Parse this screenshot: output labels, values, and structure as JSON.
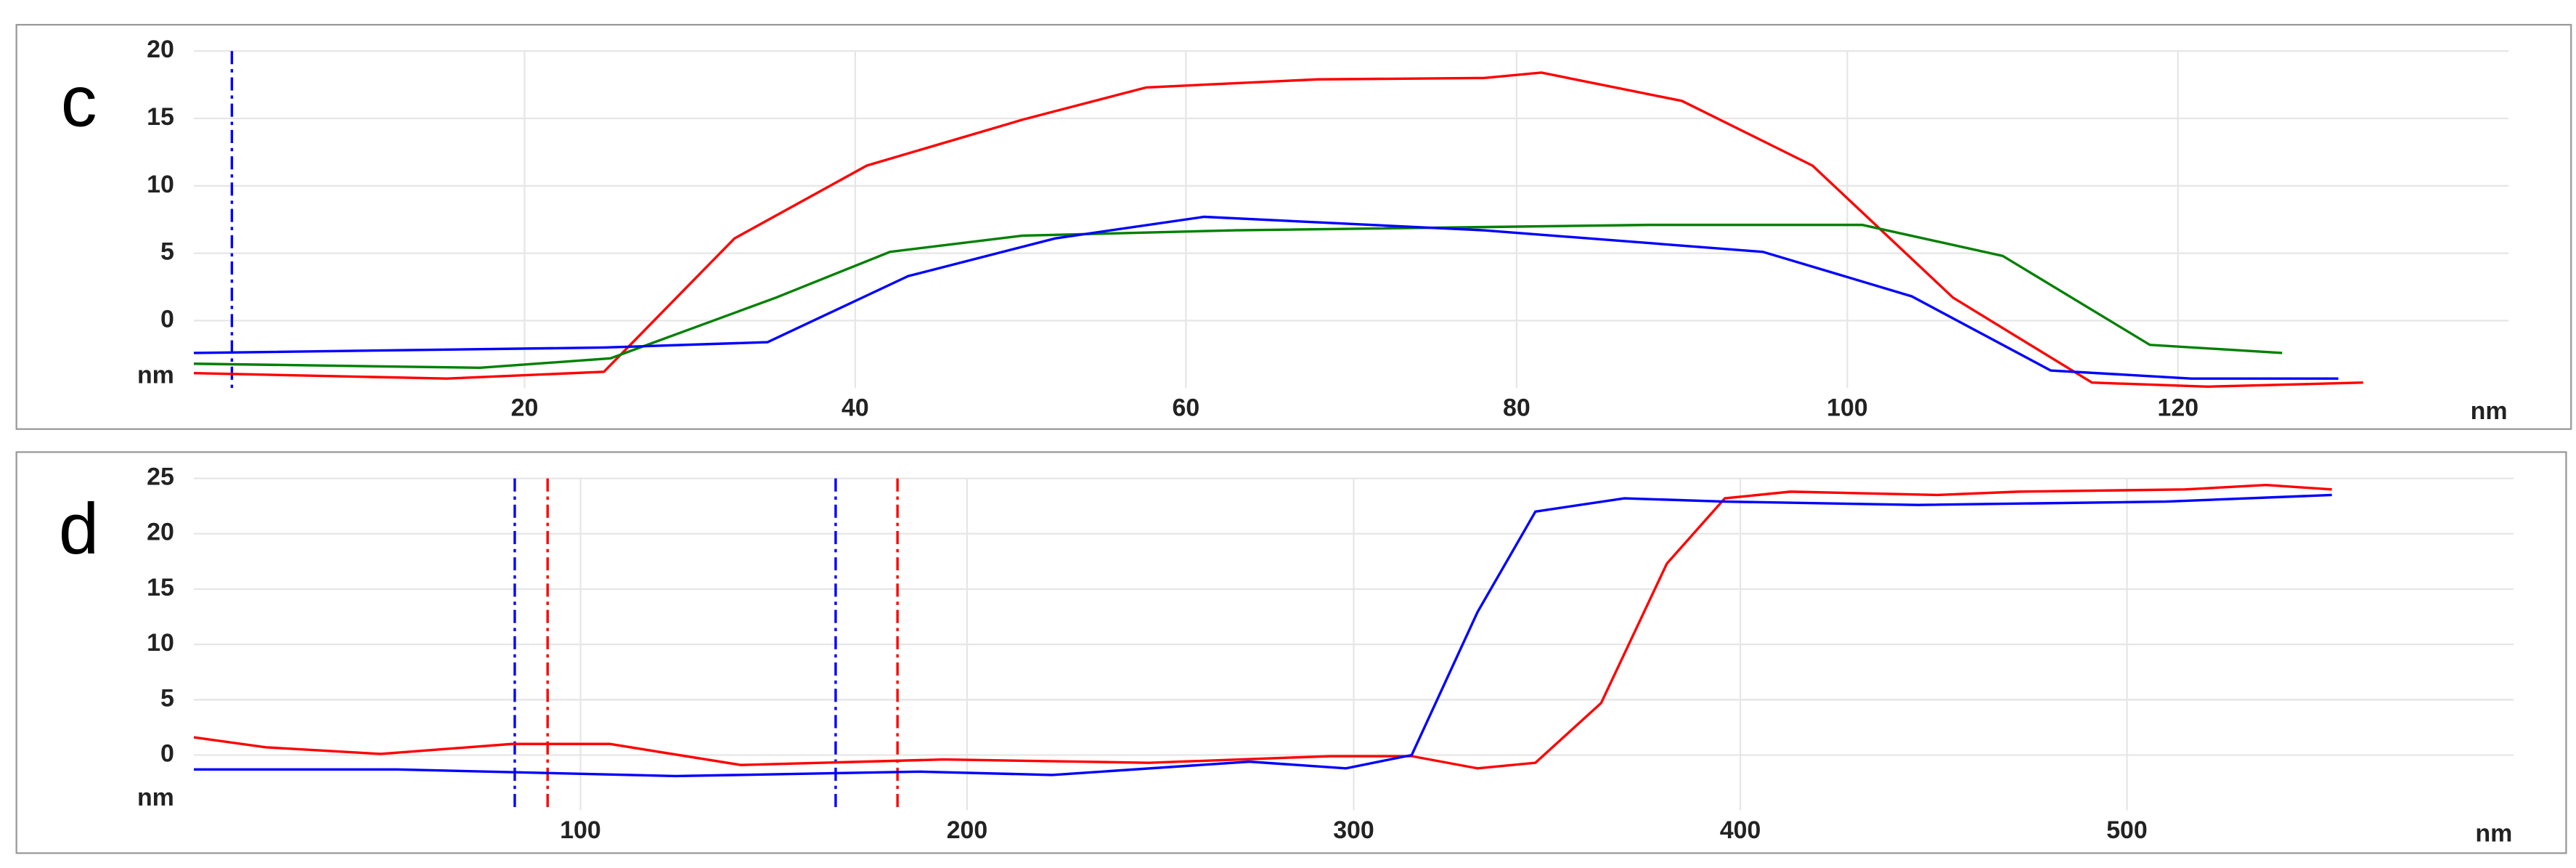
{
  "chart_data": [
    {
      "type": "line",
      "panel_label": "c",
      "x_label": "nm",
      "y_label": "nm",
      "xlim": [
        0,
        140
      ],
      "ylim": [
        -5,
        20
      ],
      "xticks": [
        20,
        40,
        60,
        80,
        100,
        120
      ],
      "yticks": [
        0,
        5,
        10,
        15,
        20
      ],
      "grid": true,
      "vertical_lines": [
        {
          "x": 2.3,
          "color": "#0000ff"
        }
      ],
      "series": [
        {
          "color": "#ff0000",
          "x": [
            0,
            15.3,
            24.8,
            32.7,
            40.7,
            50.1,
            57.6,
            68,
            78,
            81.5,
            90,
            97.9,
            106.4,
            114.8,
            121.8,
            131.2
          ],
          "values": [
            -3.9,
            -4.3,
            -3.8,
            6.1,
            11.5,
            14.9,
            17.3,
            17.9,
            18,
            18.4,
            16.3,
            11.5,
            1.7,
            -4.6,
            -4.9,
            -4.6
          ]
        },
        {
          "color": "#008000",
          "x": [
            0,
            17.3,
            25.2,
            35.2,
            42.1,
            50.1,
            63,
            88,
            100.9,
            109.4,
            118.3,
            126.3
          ],
          "values": [
            -3.2,
            -3.5,
            -2.8,
            1.7,
            5.1,
            6.3,
            6.7,
            7.1,
            7.1,
            4.8,
            -1.8,
            -2.4
          ]
        },
        {
          "color": "#0000ff",
          "x": [
            0,
            24.8,
            34.7,
            43.2,
            52.1,
            61.1,
            78,
            94.9,
            103.9,
            112.3,
            120.8,
            129.7
          ],
          "values": [
            -2.4,
            -2,
            -1.6,
            3.3,
            6.1,
            7.7,
            6.7,
            5.1,
            1.8,
            -3.7,
            -4.3,
            -4.3
          ]
        }
      ]
    },
    {
      "type": "line",
      "panel_label": "d",
      "x_label": "nm",
      "y_label": "nm",
      "xlim": [
        0,
        600
      ],
      "ylim": [
        -5,
        25
      ],
      "xticks": [
        100,
        200,
        300,
        400,
        500
      ],
      "yticks": [
        0,
        5,
        10,
        15,
        20,
        25
      ],
      "grid": true,
      "vertical_lines": [
        {
          "x": 83,
          "color": "#0000ff"
        },
        {
          "x": 91.5,
          "color": "#ff0000"
        },
        {
          "x": 166,
          "color": "#0000ff"
        },
        {
          "x": 182,
          "color": "#ff0000"
        }
      ],
      "series": [
        {
          "color": "#ff0000",
          "x": [
            0,
            18.6,
            48.3,
            82.2,
            107.6,
            141.5,
            194,
            247,
            294,
            315,
            332,
            347,
            364,
            381,
            396,
            413,
            451,
            472,
            515,
            536,
            553
          ],
          "values": [
            1.6,
            0.7,
            0.1,
            1,
            1,
            -0.9,
            -0.4,
            -0.7,
            -0.1,
            -0.1,
            -1.2,
            -0.7,
            4.7,
            17.3,
            23.2,
            23.8,
            23.5,
            23.8,
            24,
            24.4,
            24
          ]
        },
        {
          "color": "#0000ff",
          "x": [
            0,
            52.5,
            124.6,
            188,
            222,
            273,
            298,
            315,
            332,
            347,
            370,
            396,
            446,
            510,
            553
          ],
          "values": [
            -1.3,
            -1.3,
            -1.9,
            -1.5,
            -1.8,
            -0.6,
            -1.2,
            0,
            12.9,
            22,
            23.2,
            22.9,
            22.6,
            22.9,
            23.5
          ]
        }
      ]
    }
  ]
}
